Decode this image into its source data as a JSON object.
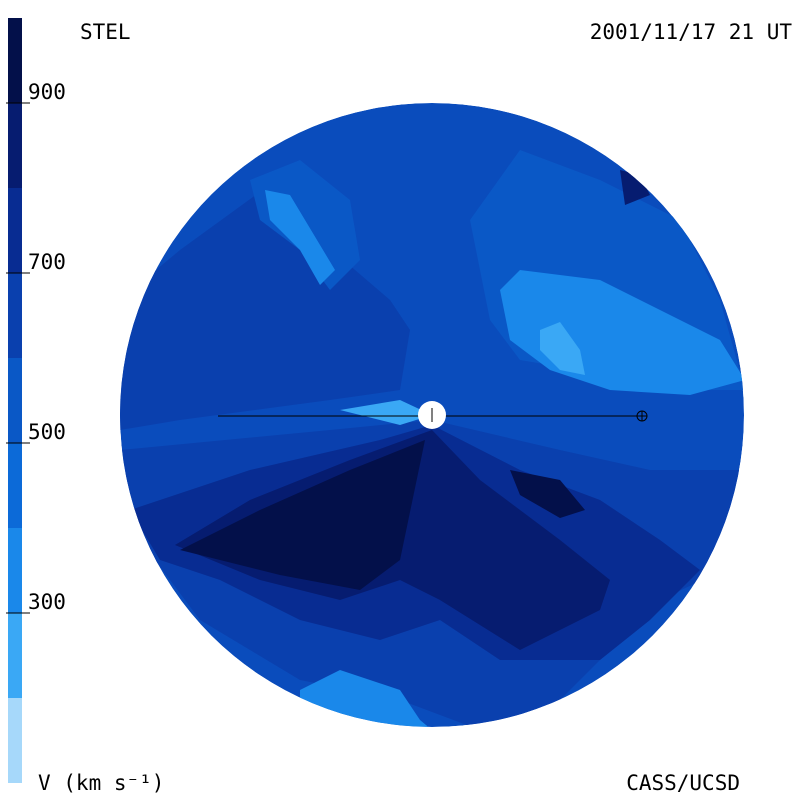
{
  "chart_data": {
    "type": "colormap",
    "title": "STEL",
    "subtitle": "2001/11/17 21 UT",
    "credit": "CASS/UCSD",
    "colorbar": {
      "label": "V (km s⁻¹)",
      "lim": [
        100,
        1000
      ],
      "ticks": [
        300,
        500,
        700,
        900
      ],
      "bounds": [
        100,
        200,
        300,
        400,
        500,
        600,
        700,
        800,
        900,
        1000
      ],
      "colors": [
        "#a6d8fa",
        "#3aa8f5",
        "#1a88ea",
        "#0c6ad8",
        "#0a58c6",
        "#0a40ae",
        "#082c92",
        "#061c70",
        "#03104a"
      ]
    }
  }
}
